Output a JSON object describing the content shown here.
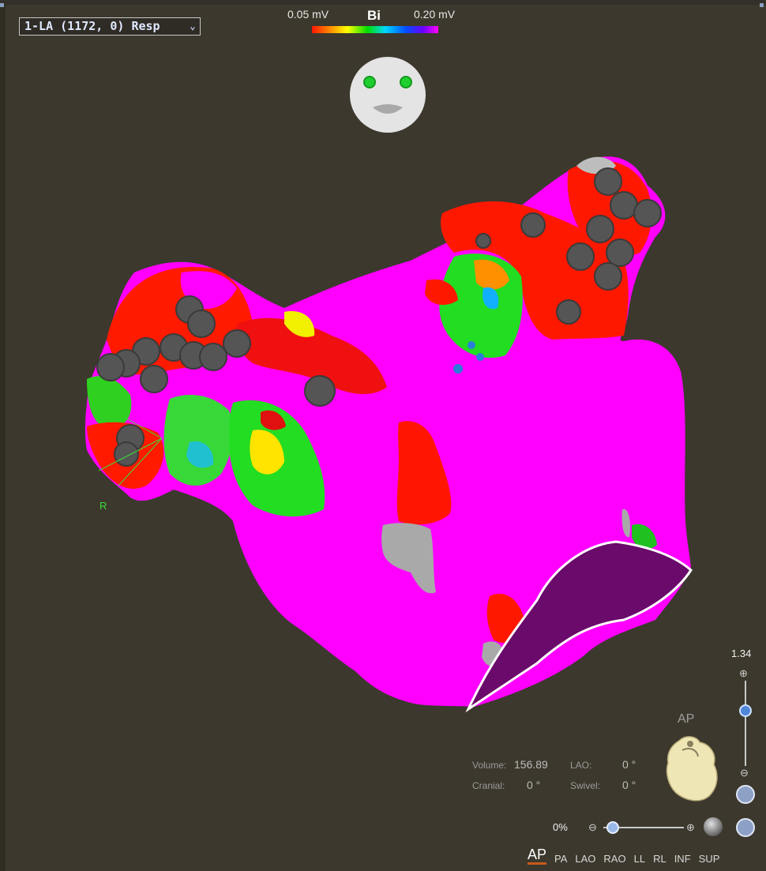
{
  "map_selector": {
    "label": "1-LA (1172, 0) Resp"
  },
  "voltage_scale": {
    "min_label": "0.05 mV",
    "mode_label": "Bi",
    "max_label": "0.20 mV"
  },
  "marker_label": "R",
  "readouts": {
    "volume_label": "Volume:",
    "volume_value": "156.89",
    "lao_label": "LAO:",
    "lao_value": "0 °",
    "cranial_label": "Cranial:",
    "cranial_value": "0 °",
    "swivel_label": "Swivel:",
    "swivel_value": "0 °"
  },
  "orientation_label": "AP",
  "zoom": {
    "value": "1.34",
    "level": 0.65
  },
  "transparency": {
    "value": "0%",
    "level": 0.0
  },
  "view_buttons": [
    "AP",
    "PA",
    "LAO",
    "RAO",
    "LL",
    "RL",
    "INF",
    "SUP"
  ],
  "active_view": "AP",
  "colors": {
    "background": "#3c382d",
    "scar": "#ff00ff",
    "low_voltage": "#ff1800",
    "active_tab_underline": "#c85a1a"
  }
}
